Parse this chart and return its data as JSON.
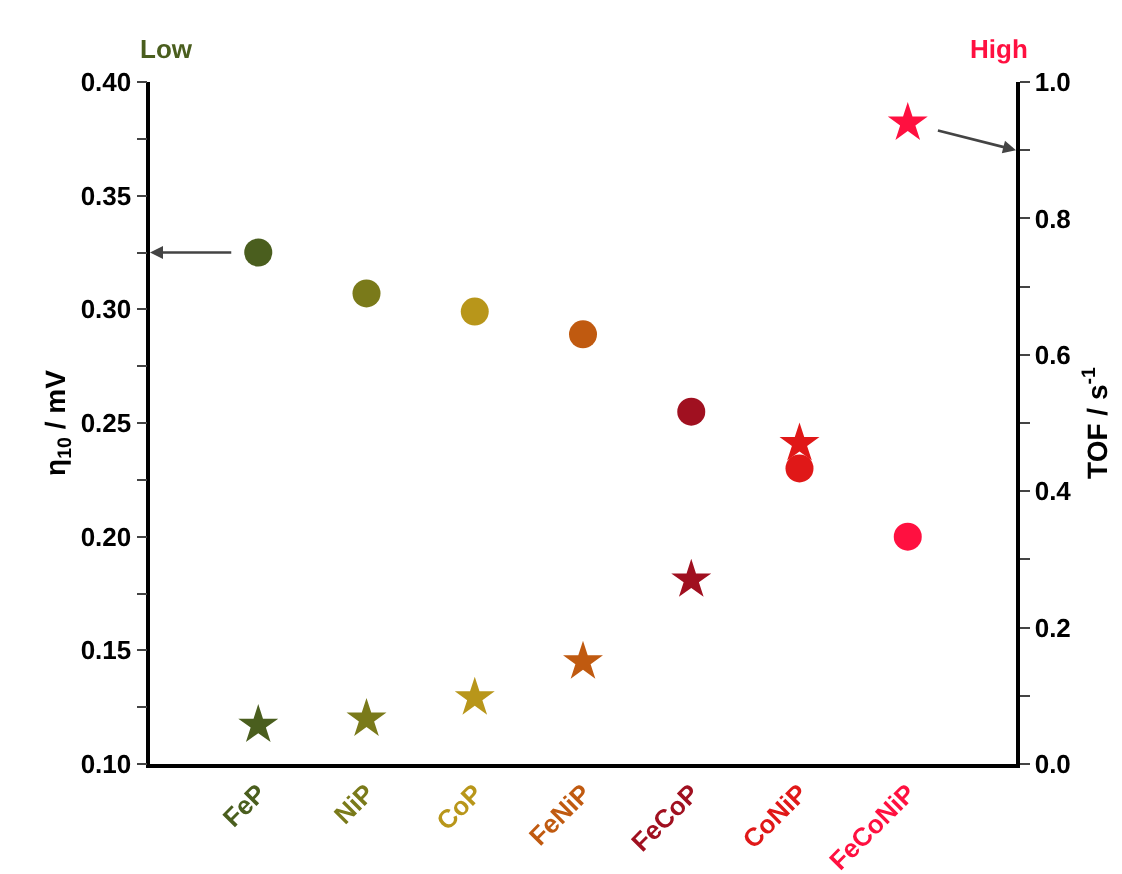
{
  "chart_data": {
    "type": "scatter",
    "ylabel": "η$_{10}$ / mV",
    "y2label": "TOF / s$^{-1}$",
    "categories": [
      "FeP",
      "NiP",
      "CoP",
      "FeNiP",
      "FeCoP",
      "CoNiP",
      "FeCoNiP"
    ],
    "series": [
      {
        "marker": "circle",
        "colors": [
          "#4a5e1e",
          "#7a7a1a",
          "#b8961a",
          "#c05a10",
          "#a01020",
          "#e01818",
          "#ff1040"
        ],
        "values": [
          0.325,
          0.307,
          0.299,
          0.289,
          0.255,
          0.23,
          0.2
        ]
      },
      {
        "marker": "star",
        "axis": "y2",
        "colors": [
          "#4a5e1e",
          "#7a7a1a",
          "#b8961a",
          "#c05a10",
          "#a01020",
          "#e01818",
          "#ff1040"
        ],
        "values": [
          0.057,
          0.066,
          0.097,
          0.15,
          0.27,
          0.47,
          0.94
        ]
      }
    ],
    "ylim": [
      0.1,
      0.4
    ],
    "yticks": [
      {
        "value": 0.1,
        "label": "0.10"
      },
      {
        "value": 0.125,
        "label": null
      },
      0.15,
      {
        "value": 0.175,
        "label": null
      },
      {
        "value": 0.2,
        "label": "0.20"
      },
      {
        "value": 0.225,
        "label": null
      },
      0.25,
      {
        "value": 0.275,
        "label": null
      },
      {
        "value": 0.3,
        "label": "0.30"
      },
      {
        "value": 0.325,
        "label": null
      },
      0.35,
      {
        "value": 0.375,
        "label": null
      },
      {
        "value": 0.4,
        "label": "0.40"
      }
    ],
    "y2lim": [
      0,
      1
    ],
    "y2ticks": [
      {
        "value": 0,
        "label": "0.0"
      },
      {
        "value": 0.1,
        "label": null
      },
      0.2,
      {
        "value": 0.3,
        "label": null
      },
      0.4,
      {
        "value": 0.5,
        "label": null
      },
      0.6,
      {
        "value": 0.7,
        "label": null
      },
      0.8,
      {
        "value": 0.9,
        "label": null
      },
      {
        "value": 1,
        "label": "1.0"
      }
    ],
    "annotations": [
      "Low",
      "High"
    ]
  }
}
